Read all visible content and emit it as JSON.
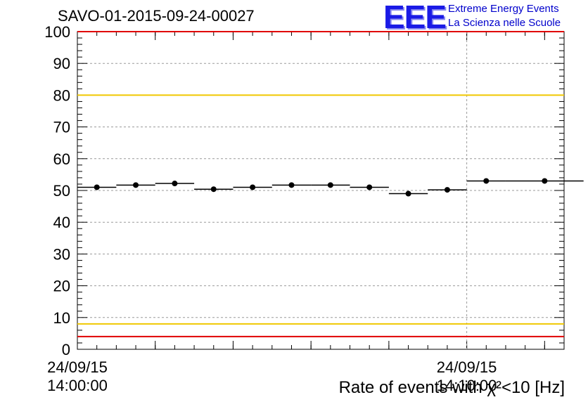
{
  "header": {
    "title": "SAVO-01-2015-09-24-00027",
    "logo_text": "EEE",
    "logo_line1": "Extreme Energy Events",
    "logo_line2": "La Scienza nelle Scuole"
  },
  "colors": {
    "red_limit": "#e00000",
    "yellow_limit": "#f0c800",
    "marker": "#000000",
    "grid": "#9a9a9a"
  },
  "chart_data": {
    "type": "scatter",
    "title": "SAVO-01-2015-09-24-00027",
    "xlabel": "Rate of events with χ²<10 [Hz]",
    "ylabel": "",
    "ylim": [
      0,
      100
    ],
    "yticks": [
      0,
      10,
      20,
      30,
      40,
      50,
      60,
      70,
      80,
      90,
      100
    ],
    "xlim": [
      0,
      1
    ],
    "xtick_labels": [
      {
        "date": "24/09/15",
        "time": "14:00:00",
        "at": 0.0
      },
      {
        "date": "24/09/15",
        "time": "14:10:00",
        "at": 0.8
      }
    ],
    "series": [
      {
        "name": "rate",
        "x": [
          0.04,
          0.12,
          0.2,
          0.28,
          0.36,
          0.44,
          0.52,
          0.6,
          0.68,
          0.76,
          0.84,
          0.96
        ],
        "x_err": [
          0.04,
          0.04,
          0.04,
          0.04,
          0.04,
          0.04,
          0.04,
          0.04,
          0.04,
          0.04,
          0.04,
          0.08
        ],
        "values": [
          51,
          51.7,
          52.2,
          50.4,
          51,
          51.7,
          51.7,
          51,
          49,
          50.2,
          53,
          53
        ]
      }
    ],
    "reference_lines": [
      {
        "y": 100,
        "color": "red"
      },
      {
        "y": 80,
        "color": "yellow"
      },
      {
        "y": 8,
        "color": "yellow"
      },
      {
        "y": 4,
        "color": "red"
      }
    ],
    "grid": true
  }
}
